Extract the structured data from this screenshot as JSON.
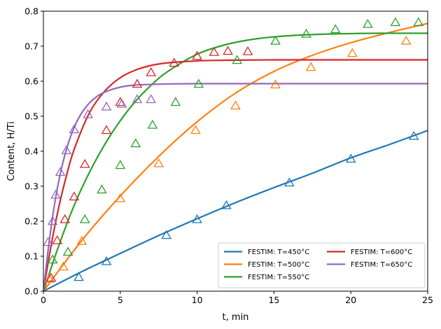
{
  "chart_data": {
    "type": "line",
    "xlabel": "t, min",
    "ylabel": "Content, H/Ti",
    "xlim": [
      0,
      25
    ],
    "ylim": [
      0,
      0.8
    ],
    "xticks": [
      0,
      5,
      10,
      15,
      20,
      25
    ],
    "yticks": [
      0.0,
      0.1,
      0.2,
      0.3,
      0.4,
      0.5,
      0.6,
      0.7,
      0.8
    ],
    "grid": false,
    "legend": {
      "position": "lower-right",
      "columns": 2
    },
    "series": [
      {
        "name": "FESTIM: T=450°C",
        "color": "#1f77b4",
        "line": {
          "x": [
            0,
            2.5,
            5,
            7.5,
            10,
            12.5,
            15,
            17.5,
            20,
            22.5,
            25
          ],
          "y": [
            0,
            0.056,
            0.108,
            0.159,
            0.207,
            0.253,
            0.296,
            0.337,
            0.381,
            0.419,
            0.459
          ]
        },
        "markers": {
          "x": [
            2.3,
            4.1,
            8.0,
            10.0,
            11.9,
            16.0,
            20.0,
            24.1
          ],
          "y": [
            0.04,
            0.085,
            0.16,
            0.205,
            0.245,
            0.31,
            0.378,
            0.443
          ]
        }
      },
      {
        "name": "FESTIM: T=500°C",
        "color": "#ff7f0e",
        "line": {
          "x": [
            0,
            2.5,
            5,
            7.5,
            10,
            12.5,
            15,
            17.5,
            20,
            22.5,
            25
          ],
          "y": [
            0,
            0.145,
            0.272,
            0.385,
            0.484,
            0.566,
            0.628,
            0.674,
            0.71,
            0.739,
            0.765
          ]
        },
        "markers": {
          "x": [
            0.4,
            1.3,
            2.5,
            5.0,
            7.5,
            9.9,
            12.5,
            15.1,
            17.4,
            20.1,
            23.6
          ],
          "y": [
            0.035,
            0.07,
            0.143,
            0.265,
            0.365,
            0.46,
            0.53,
            0.59,
            0.64,
            0.68,
            0.715
          ]
        }
      },
      {
        "name": "FESTIM: T=550°C",
        "color": "#2ca02c",
        "line": {
          "x": [
            0,
            1,
            2,
            3,
            4,
            5,
            6,
            7,
            8,
            10,
            12,
            14,
            16,
            18,
            20,
            22,
            25
          ],
          "y": [
            0,
            0.13,
            0.245,
            0.34,
            0.42,
            0.487,
            0.543,
            0.588,
            0.625,
            0.677,
            0.706,
            0.722,
            0.73,
            0.734,
            0.736,
            0.737,
            0.737
          ]
        },
        "markers": {
          "x": [
            0.6,
            1.6,
            2.7,
            3.8,
            5.0,
            6.0,
            7.1,
            8.6,
            10.1,
            12.6,
            15.1,
            17.1,
            19.0,
            21.1,
            22.9,
            24.4
          ],
          "y": [
            0.09,
            0.112,
            0.205,
            0.29,
            0.36,
            0.422,
            0.475,
            0.54,
            0.592,
            0.66,
            0.715,
            0.735,
            0.748,
            0.763,
            0.768,
            0.768
          ]
        }
      },
      {
        "name": "FESTIM: T=600°C",
        "color": "#d62728",
        "line": {
          "x": [
            0,
            0.5,
            1,
            1.5,
            2,
            3,
            4,
            5,
            6,
            7,
            8,
            10,
            12,
            15,
            20,
            25
          ],
          "y": [
            0,
            0.13,
            0.24,
            0.33,
            0.405,
            0.51,
            0.572,
            0.61,
            0.632,
            0.645,
            0.652,
            0.658,
            0.66,
            0.661,
            0.661,
            0.661
          ]
        },
        "markers": {
          "x": [
            0.5,
            0.9,
            1.4,
            2.0,
            2.7,
            4.1,
            5.0,
            6.1,
            7.0,
            8.5,
            10.0,
            11.1,
            12.0,
            13.3
          ],
          "y": [
            0.038,
            0.145,
            0.205,
            0.27,
            0.363,
            0.46,
            0.54,
            0.592,
            0.625,
            0.652,
            0.672,
            0.683,
            0.686,
            0.685
          ]
        }
      },
      {
        "name": "FESTIM: T=650°C",
        "color": "#9467bd",
        "line": {
          "x": [
            0,
            0.4,
            0.8,
            1.2,
            1.6,
            2,
            2.5,
            3,
            3.5,
            4,
            5,
            6,
            8,
            10,
            15,
            25
          ],
          "y": [
            0,
            0.15,
            0.268,
            0.355,
            0.42,
            0.468,
            0.51,
            0.538,
            0.557,
            0.569,
            0.583,
            0.589,
            0.592,
            0.593,
            0.593,
            0.593
          ]
        },
        "markers": {
          "x": [
            0.3,
            0.6,
            0.8,
            1.1,
            1.5,
            2.0,
            2.9,
            4.1,
            5.1,
            6.1,
            7.0
          ],
          "y": [
            0.14,
            0.2,
            0.275,
            0.34,
            0.402,
            0.462,
            0.505,
            0.527,
            0.535,
            0.548,
            0.548
          ]
        }
      }
    ]
  }
}
